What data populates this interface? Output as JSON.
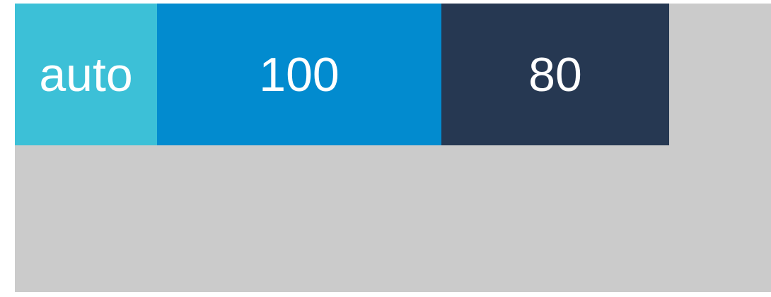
{
  "items": [
    {
      "label": "auto",
      "color": "#3cc0d7"
    },
    {
      "label": "100",
      "color": "#028bcf"
    },
    {
      "label": "80",
      "color": "#263852"
    }
  ],
  "container": {
    "color": "#cbcbcb"
  }
}
